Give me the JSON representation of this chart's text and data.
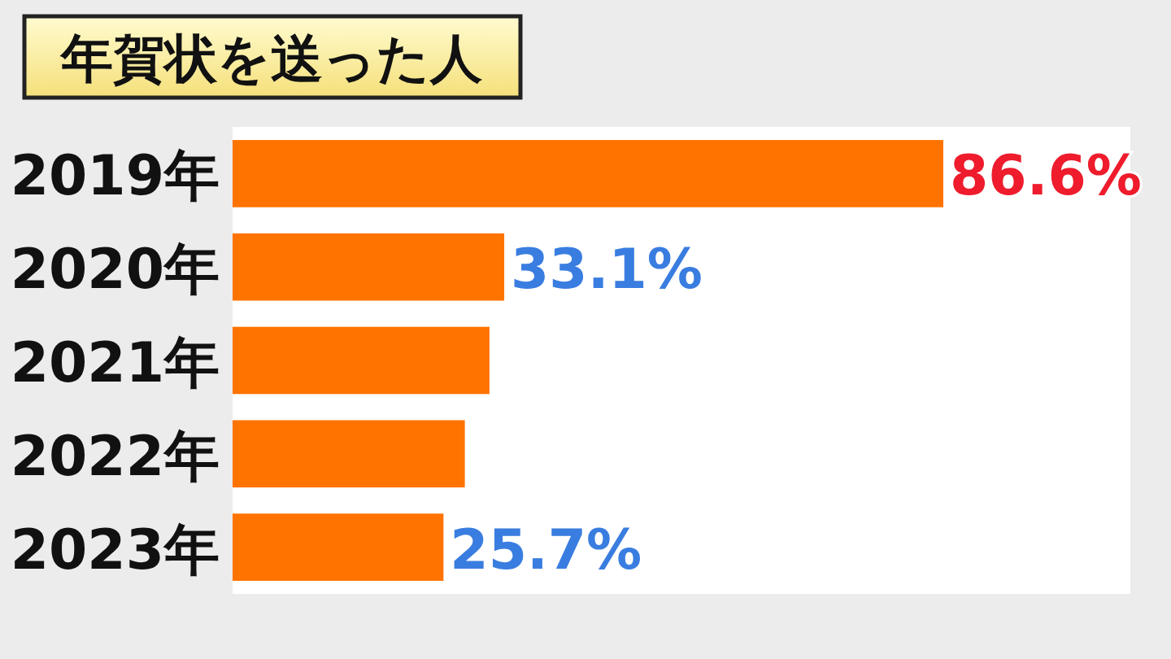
{
  "chart_data": {
    "type": "bar",
    "orientation": "horizontal",
    "title": "年賀状を送った人",
    "categories": [
      "2019年",
      "2020年",
      "2021年",
      "2022年",
      "2023年"
    ],
    "values": [
      86.6,
      33.1,
      31.3,
      28.3,
      25.7
    ],
    "value_labels": [
      "86.6%",
      "33.1%",
      null,
      null,
      "25.7%"
    ],
    "color": "#ff7300"
  }
}
